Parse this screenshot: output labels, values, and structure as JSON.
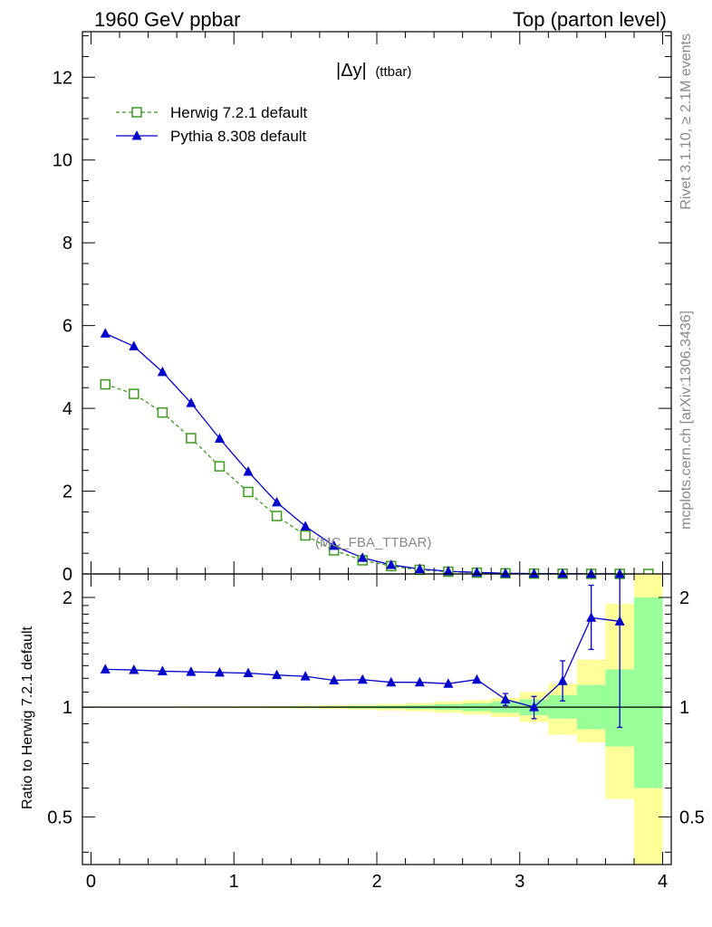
{
  "header": {
    "left": "1960 GeV ppbar",
    "right": "Top (parton level)"
  },
  "side_labels": {
    "rivet": "Rivet 3.1.10, ≥ 2.1M events",
    "source": "mcplots.cern.ch [arXiv:1306.3436]"
  },
  "observable": {
    "main": "|Δy|",
    "sub": "(ttbar)"
  },
  "analysis_tag": "(MC_FBA_TTBAR)",
  "ratio_ylabel": "Ratio to Herwig 7.2.1 default",
  "colors": {
    "herwig": "#3c9a1e",
    "pythia": "#0000cc",
    "band_inner": "#99ff99",
    "band_outer": "#ffff99"
  },
  "chart_data": [
    {
      "type": "line",
      "panel": "main",
      "xlim": [
        -0.06,
        4.06
      ],
      "ylim": [
        0,
        13.1
      ],
      "yticks": [
        0,
        2,
        4,
        6,
        8,
        10,
        12
      ],
      "ytick_labels": [
        "0",
        "2",
        "4",
        "6",
        "8",
        "10",
        "12"
      ],
      "grid": false,
      "legend_position": "top-left",
      "x": [
        0.1,
        0.3,
        0.5,
        0.7,
        0.9,
        1.1,
        1.3,
        1.5,
        1.7,
        1.9,
        2.1,
        2.3,
        2.5,
        2.7,
        2.9,
        3.1,
        3.3,
        3.5,
        3.7,
        3.9
      ],
      "series": [
        {
          "name": "Herwig 7.2.1 default",
          "style": "dashed-open-square",
          "values": [
            4.58,
            4.35,
            3.9,
            3.28,
            2.6,
            1.98,
            1.4,
            0.93,
            0.57,
            0.33,
            0.19,
            0.1,
            0.055,
            0.03,
            0.015,
            0.008,
            0.004,
            0.002,
            0.001,
            0.0005
          ]
        },
        {
          "name": "Pythia 8.308 default",
          "style": "solid-filled-triangle",
          "values": [
            5.81,
            5.5,
            4.88,
            4.13,
            3.27,
            2.47,
            1.73,
            1.15,
            0.68,
            0.39,
            0.22,
            0.12,
            0.065,
            0.037,
            0.016,
            0.008,
            0.0048,
            0.0035,
            0.0017,
            null
          ]
        }
      ]
    },
    {
      "type": "line",
      "panel": "ratio",
      "xlim": [
        -0.06,
        4.06
      ],
      "ylim": [
        0.37,
        2.32
      ],
      "yticks": [
        0.5,
        1,
        2
      ],
      "ytick_labels": [
        "0.5",
        "1",
        "2"
      ],
      "xticks": [
        0,
        1,
        2,
        3,
        4
      ],
      "xtick_labels": [
        "0",
        "1",
        "2",
        "3",
        "4"
      ],
      "reference": 1,
      "bands": {
        "edges": [
          0.0,
          0.2,
          0.4,
          0.6,
          0.8,
          1.0,
          1.2,
          1.4,
          1.6,
          1.8,
          2.0,
          2.2,
          2.4,
          2.6,
          2.8,
          3.0,
          3.2,
          3.4,
          3.6,
          3.8,
          4.0
        ],
        "inner_lo": [
          0.998,
          0.998,
          0.998,
          0.998,
          0.997,
          0.997,
          0.996,
          0.995,
          0.994,
          0.992,
          0.99,
          0.987,
          0.982,
          0.975,
          0.965,
          0.95,
          0.93,
          0.87,
          0.78,
          0.6
        ],
        "inner_hi": [
          1.002,
          1.002,
          1.002,
          1.002,
          1.003,
          1.003,
          1.004,
          1.005,
          1.006,
          1.008,
          1.01,
          1.013,
          1.018,
          1.025,
          1.035,
          1.05,
          1.08,
          1.15,
          1.27,
          2.0
        ],
        "outer_lo": [
          0.996,
          0.996,
          0.996,
          0.995,
          0.995,
          0.994,
          0.993,
          0.991,
          0.988,
          0.985,
          0.98,
          0.974,
          0.965,
          0.955,
          0.94,
          0.91,
          0.84,
          0.8,
          0.56,
          0.37
        ],
        "outer_hi": [
          1.004,
          1.004,
          1.004,
          1.005,
          1.005,
          1.006,
          1.007,
          1.009,
          1.012,
          1.015,
          1.02,
          1.026,
          1.035,
          1.045,
          1.06,
          1.1,
          1.16,
          1.35,
          1.92,
          2.32
        ]
      },
      "x": [
        0.1,
        0.3,
        0.5,
        0.7,
        0.9,
        1.1,
        1.3,
        1.5,
        1.7,
        1.9,
        2.1,
        2.3,
        2.5,
        2.7,
        2.9,
        3.1,
        3.3,
        3.5,
        3.7
      ],
      "series": [
        {
          "name": "Pythia 8.308 default",
          "values": [
            1.27,
            1.265,
            1.255,
            1.25,
            1.245,
            1.24,
            1.225,
            1.215,
            1.185,
            1.19,
            1.17,
            1.17,
            1.16,
            1.19,
            1.05,
            1.0,
            1.18,
            1.76,
            1.72
          ],
          "err_lo": [
            0,
            0,
            0,
            0,
            0,
            0,
            0,
            0,
            0,
            0,
            0,
            0,
            0,
            0,
            0.04,
            0.07,
            0.14,
            0.32,
            0.84
          ],
          "err_hi": [
            0,
            0,
            0,
            0,
            0,
            0,
            0,
            0,
            0,
            0,
            0,
            0,
            0,
            0,
            0.04,
            0.07,
            0.16,
            0.4,
            1.2
          ]
        }
      ]
    }
  ]
}
